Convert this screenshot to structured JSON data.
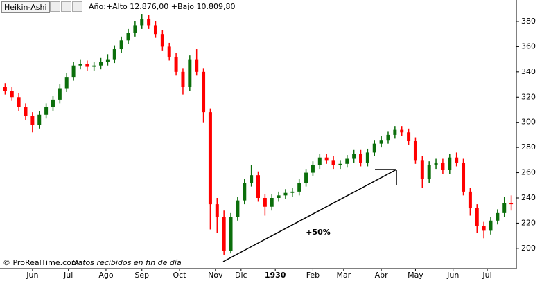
{
  "chart_data": {
    "type": "candlestick",
    "title": "Heikin-Ashi",
    "subtitle": "Año:+Alto 12.876,00 +Bajo 10.809,80",
    "annotation": "+50%",
    "source": "© ProRealTime.com",
    "note": "Datos recibidos en fin de día",
    "up_color": "#0b6e0b",
    "down_color": "#ff0000",
    "x": [
      0,
      4,
      8,
      12,
      16,
      20,
      24,
      28,
      32,
      36,
      40,
      44,
      48,
      52,
      56,
      60,
      64,
      68,
      72,
      76,
      80,
      84,
      88,
      92,
      96,
      100,
      104,
      108,
      112,
      116,
      120,
      124,
      128,
      132,
      136,
      140,
      144,
      148,
      152,
      156,
      160,
      164,
      168,
      172,
      176,
      180,
      184,
      188,
      192,
      196,
      200,
      204,
      208,
      212,
      216,
      220,
      224,
      228,
      232,
      236,
      240,
      244,
      248,
      252,
      256,
      260,
      264,
      268,
      272,
      276,
      280,
      284,
      288,
      292,
      296
    ],
    "open": [
      328,
      325,
      320,
      312,
      305,
      298,
      306,
      312,
      318,
      327,
      336,
      345,
      346,
      344,
      345,
      348,
      350,
      358,
      365,
      371,
      377,
      382,
      377,
      370,
      360,
      352,
      340,
      328,
      350,
      340,
      308,
      235,
      225,
      198,
      225,
      238,
      252,
      258,
      240,
      233,
      240,
      242,
      244,
      245,
      252,
      260,
      266,
      272,
      270,
      266,
      267,
      271,
      275,
      268,
      276,
      283,
      286,
      290,
      294,
      292,
      285,
      270,
      255,
      266,
      268,
      262,
      272,
      268,
      245,
      232,
      218,
      214,
      222,
      228,
      236
    ],
    "high": [
      331,
      328,
      323,
      315,
      308,
      309,
      315,
      321,
      330,
      339,
      348,
      350,
      349,
      348,
      351,
      354,
      361,
      368,
      374,
      380,
      386,
      385,
      380,
      373,
      363,
      355,
      343,
      353,
      358,
      343,
      311,
      240,
      230,
      228,
      241,
      255,
      266,
      261,
      243,
      243,
      245,
      247,
      248,
      255,
      263,
      269,
      275,
      275,
      273,
      270,
      274,
      278,
      278,
      279,
      286,
      289,
      293,
      297,
      297,
      295,
      288,
      273,
      269,
      271,
      271,
      275,
      276,
      271,
      248,
      235,
      221,
      225,
      231,
      241,
      242
    ],
    "low": [
      322,
      317,
      309,
      302,
      292,
      295,
      303,
      309,
      315,
      324,
      333,
      342,
      341,
      341,
      342,
      345,
      347,
      355,
      362,
      368,
      374,
      374,
      367,
      357,
      349,
      337,
      322,
      325,
      337,
      300,
      215,
      212,
      195,
      196,
      222,
      235,
      249,
      237,
      226,
      230,
      237,
      239,
      241,
      242,
      249,
      257,
      263,
      267,
      263,
      263,
      264,
      268,
      265,
      265,
      273,
      280,
      283,
      287,
      289,
      282,
      267,
      248,
      252,
      263,
      259,
      259,
      265,
      242,
      226,
      212,
      208,
      211,
      219,
      225,
      230
    ],
    "close": [
      325,
      320,
      312,
      305,
      298,
      306,
      312,
      318,
      327,
      336,
      345,
      346,
      344,
      345,
      348,
      350,
      358,
      365,
      371,
      377,
      382,
      377,
      370,
      360,
      352,
      340,
      328,
      350,
      340,
      308,
      235,
      225,
      198,
      225,
      238,
      252,
      258,
      240,
      233,
      240,
      242,
      244,
      245,
      252,
      260,
      266,
      272,
      270,
      266,
      267,
      271,
      275,
      268,
      276,
      283,
      286,
      290,
      294,
      292,
      285,
      270,
      255,
      266,
      268,
      262,
      272,
      268,
      245,
      232,
      218,
      214,
      222,
      228,
      236,
      235
    ],
    "xlim": [
      -3,
      299
    ],
    "xticks": [
      {
        "value": 16,
        "label": "Jun"
      },
      {
        "value": 37,
        "label": "Jul"
      },
      {
        "value": 59,
        "label": "Ago"
      },
      {
        "value": 80,
        "label": "Sep"
      },
      {
        "value": 102,
        "label": "Oct"
      },
      {
        "value": 123,
        "label": "Nov"
      },
      {
        "value": 138,
        "label": "Dic"
      },
      {
        "value": 158,
        "label": "1930"
      },
      {
        "value": 180,
        "label": "Feb"
      },
      {
        "value": 198,
        "label": "Mar"
      },
      {
        "value": 220,
        "label": "Abr"
      },
      {
        "value": 240,
        "label": "May"
      },
      {
        "value": 262,
        "label": "Jun"
      },
      {
        "value": 282,
        "label": "Jul"
      }
    ],
    "ylim": [
      184,
      397
    ],
    "yticks": [
      200,
      220,
      240,
      260,
      280,
      300,
      320,
      340,
      360,
      380
    ]
  }
}
